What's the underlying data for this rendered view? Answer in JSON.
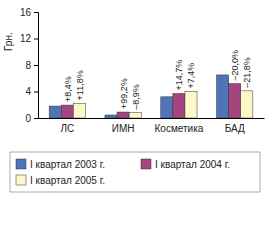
{
  "chart_data": {
    "type": "bar",
    "y_label": "Грн.",
    "categories": [
      "ЛС",
      "ИМН",
      "Косметика",
      "БАД"
    ],
    "series": [
      {
        "name": "I квартал 2003 г.",
        "color": "#4f74b8",
        "values": [
          1.8,
          0.45,
          3.2,
          6.5
        ]
      },
      {
        "name": "I квартал 2004 г.",
        "color": "#a4457f",
        "values": [
          1.95,
          0.9,
          3.7,
          5.2
        ],
        "annotations": [
          "+8,4%",
          "+99,2%",
          "+14,7%",
          "–20,0%"
        ]
      },
      {
        "name": "I квартал 2005 г.",
        "color": "#fdf8c8",
        "values": [
          2.2,
          0.8,
          4.0,
          4.1
        ],
        "annotations": [
          "+11,8%",
          "–8,9%",
          "+7,4%",
          "–21,8%"
        ]
      }
    ],
    "ylim": [
      0,
      16
    ],
    "yticks": [
      0,
      4,
      8,
      12,
      16
    ],
    "grid": false,
    "legend": "bottom"
  }
}
